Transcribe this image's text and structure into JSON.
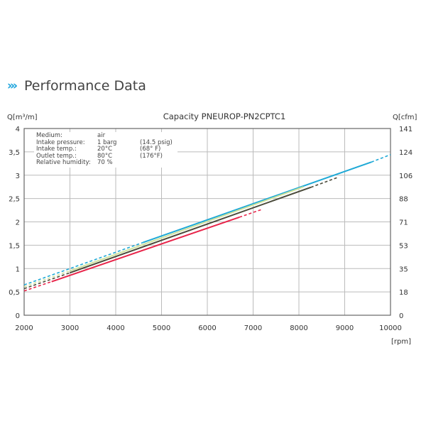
{
  "header": {
    "icon": "triple-chevron-icon",
    "chevrons": "›››",
    "title": "Performance Data"
  },
  "info_box": [
    [
      "Medium:",
      "air",
      ""
    ],
    [
      "Intake pressure:",
      "1 barg",
      "(14.5 psig)"
    ],
    [
      "Intake temp.:",
      "20°C",
      "(68°  F)"
    ],
    [
      "Outlet temp.:",
      "80°C",
      "(176°F)"
    ],
    [
      "Relative humidity:",
      "70  %",
      ""
    ]
  ],
  "chart_data": {
    "type": "line",
    "title": "Capacity PNEUROP-PN2CPTC1",
    "ylabel": "Q[m³/m]",
    "y2label": "Q[cfm]",
    "xlabel": "[rpm]",
    "xlim": [
      2000,
      10000
    ],
    "ylim": [
      0,
      4
    ],
    "xticks": [
      "2000",
      "3000",
      "4000",
      "5000",
      "6000",
      "7000",
      "8000",
      "9000",
      "10000"
    ],
    "yticks": [
      "0",
      "0,5",
      "1",
      "1,5",
      "2",
      "2,5",
      "3",
      "3,5",
      "4"
    ],
    "y2ticks": [
      "0",
      "18",
      "35",
      "53",
      "71",
      "88",
      "106",
      "124",
      "141"
    ],
    "grid": true,
    "series": [
      {
        "name": "cyan",
        "color": "#1fa9d6",
        "x": [
          2000,
          4600,
          9580,
          10000
        ],
        "y": [
          0.65,
          1.56,
          3.28,
          3.44
        ],
        "solid_from": 4600,
        "solid_to": 9580
      },
      {
        "name": "green",
        "color": "#cfe3a0",
        "x": [
          2000,
          3000,
          8100
        ],
        "y": [
          0.61,
          0.95,
          2.75
        ],
        "solid_from": 3000,
        "solid_to": 8100
      },
      {
        "name": "dark",
        "color": "#4a4a3a",
        "x": [
          2000,
          3000,
          8260,
          8840
        ],
        "y": [
          0.57,
          0.91,
          2.74,
          2.95
        ],
        "solid_from": 3000,
        "solid_to": 8260
      },
      {
        "name": "red",
        "color": "#e8254a",
        "x": [
          2000,
          2600,
          6700,
          7200
        ],
        "y": [
          0.52,
          0.72,
          2.1,
          2.27
        ],
        "solid_from": 2600,
        "solid_to": 6700
      }
    ]
  }
}
